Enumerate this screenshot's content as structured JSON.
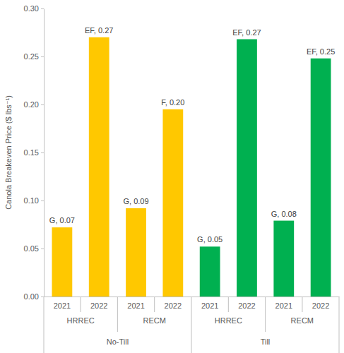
{
  "chart_data": {
    "type": "bar",
    "y_label": "Canola Breakeven Price ($ lbs⁻¹)",
    "categories": [
      [
        "2021",
        "HRREC",
        "No-Till"
      ],
      [
        "2022",
        "HRREC",
        "No-Till"
      ],
      [
        "2021",
        "RECM",
        "No-Till"
      ],
      [
        "2022",
        "RECM",
        "No-Till"
      ],
      [
        "2021",
        "HRREC",
        "Till"
      ],
      [
        "2022",
        "HRREC",
        "Till"
      ],
      [
        "2021",
        "RECM",
        "Till"
      ],
      [
        "2022",
        "RECM",
        "Till"
      ]
    ],
    "values": [
      0.072,
      0.27,
      0.092,
      0.195,
      0.052,
      0.268,
      0.079,
      0.248
    ],
    "value_labels": [
      "G, 0.07",
      "EF, 0.27",
      "G, 0.09",
      "F, 0.20",
      "G, 0.05",
      "EF, 0.27",
      "G, 0.08",
      "EF, 0.25"
    ],
    "colors": [
      "#ffc800",
      "#ffc800",
      "#ffc800",
      "#ffc800",
      "#00b050",
      "#00b050",
      "#00b050",
      "#00b050"
    ],
    "data_labels": true,
    "grid": false,
    "ylim": [
      0,
      0.3
    ],
    "yticks": [
      {
        "value": 0,
        "label": "0.00"
      },
      {
        "value": 0.05,
        "label": "0.05"
      },
      {
        "value": 0.1,
        "label": "0.10"
      },
      {
        "value": 0.15,
        "label": "0.15"
      },
      {
        "value": 0.2,
        "label": "0.20"
      },
      {
        "value": 0.25,
        "label": "0.25"
      },
      {
        "value": 0.3,
        "label": "0.30"
      }
    ]
  }
}
